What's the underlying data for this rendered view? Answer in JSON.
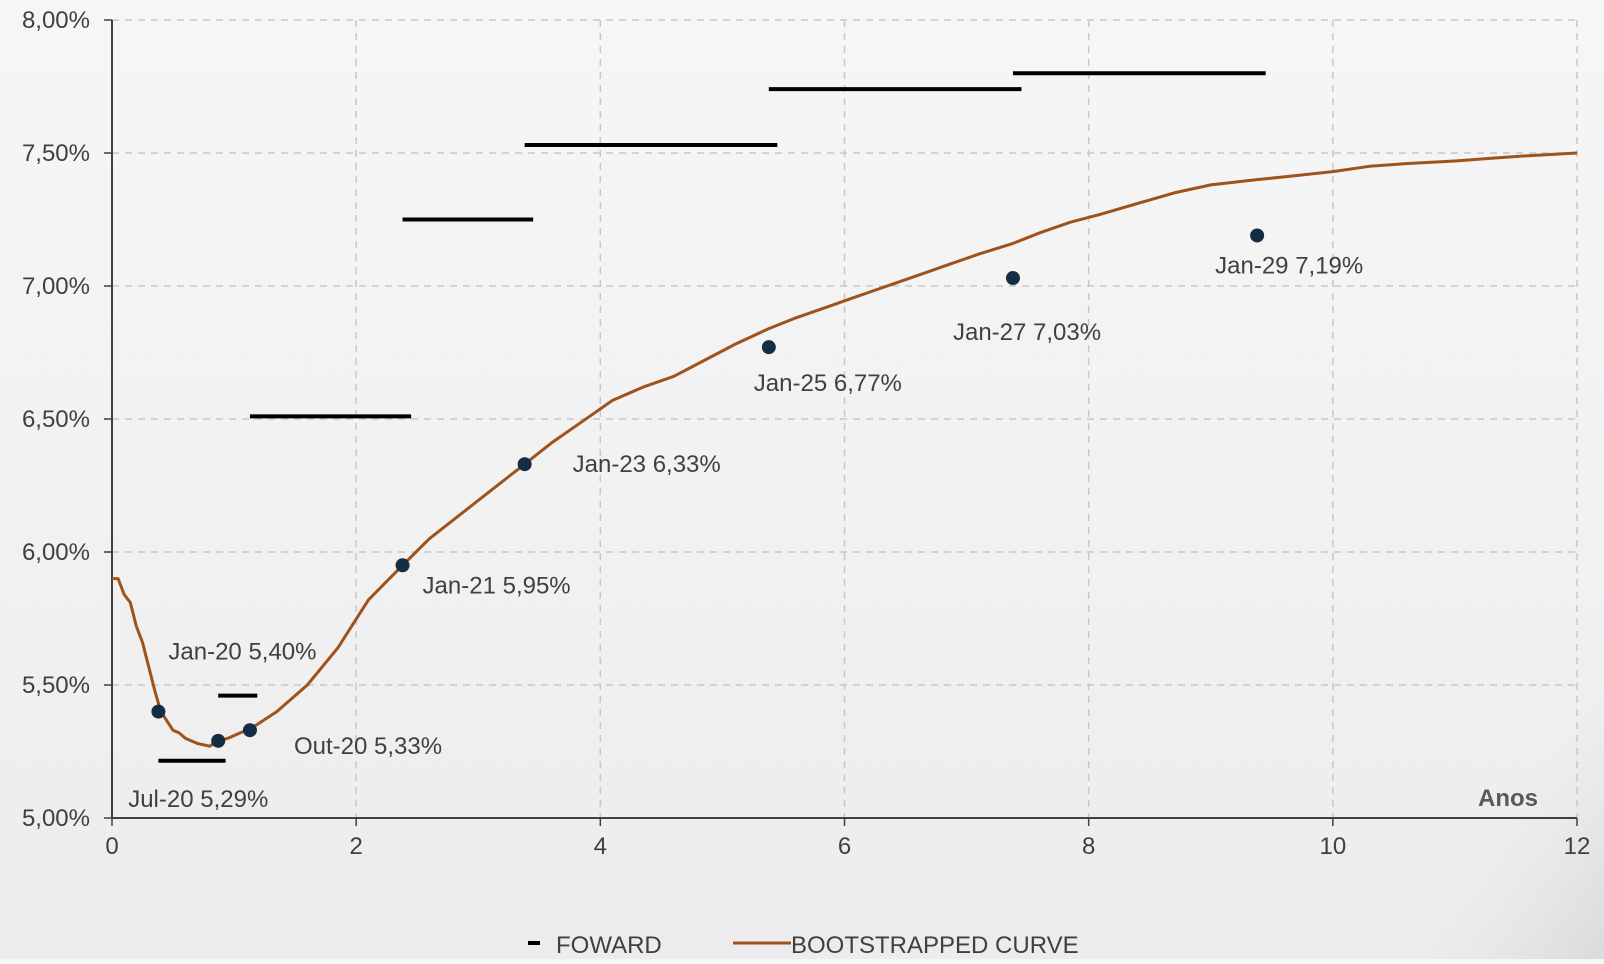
{
  "chart_data": {
    "type": "line",
    "title": "",
    "xlabel": "Anos",
    "ylabel": "",
    "xlim": [
      0,
      12
    ],
    "ylim": [
      5.0,
      8.0
    ],
    "x_ticks": [
      0,
      2,
      4,
      6,
      8,
      10,
      12
    ],
    "x_tick_labels": [
      "0",
      "2",
      "4",
      "6",
      "8",
      "10",
      "12"
    ],
    "y_ticks": [
      5.0,
      5.5,
      6.0,
      6.5,
      7.0,
      7.5,
      8.0
    ],
    "y_tick_labels": [
      "5,00%",
      "5,50%",
      "6,00%",
      "6,50%",
      "7,00%",
      "7,50%",
      "8,00%"
    ],
    "grid": "dashed",
    "legend_position": "bottom-center",
    "colors": {
      "curve": "#a0521b",
      "forward": "#000000",
      "points": "#152c45",
      "grid": "#c8c8c8",
      "axis": "#404040",
      "text": "#404040"
    },
    "series": [
      {
        "name": "FOWARD",
        "style": "segments",
        "segments": [
          {
            "x0": 0.38,
            "x1": 0.93,
            "y": 5.215
          },
          {
            "x0": 0.87,
            "x1": 1.19,
            "y": 5.46
          },
          {
            "x0": 1.13,
            "x1": 2.45,
            "y": 6.51
          },
          {
            "x0": 2.38,
            "x1": 3.45,
            "y": 7.25
          },
          {
            "x0": 3.38,
            "x1": 5.45,
            "y": 7.53
          },
          {
            "x0": 5.38,
            "x1": 7.45,
            "y": 7.74
          },
          {
            "x0": 7.38,
            "x1": 9.45,
            "y": 7.8
          }
        ]
      },
      {
        "name": "BOOTSTRAPPED CURVE",
        "style": "line",
        "x": [
          0.0,
          0.05,
          0.1,
          0.15,
          0.2,
          0.25,
          0.3,
          0.35,
          0.4,
          0.5,
          0.55,
          0.6,
          0.7,
          0.8,
          0.87,
          0.95,
          1.05,
          1.15,
          1.35,
          1.6,
          1.85,
          2.1,
          2.38,
          2.6,
          2.85,
          3.1,
          3.38,
          3.6,
          3.85,
          4.1,
          4.35,
          4.6,
          4.85,
          5.1,
          5.38,
          5.6,
          5.85,
          6.1,
          6.35,
          6.6,
          6.85,
          7.1,
          7.38,
          7.6,
          7.85,
          8.1,
          8.4,
          8.7,
          9.0,
          9.38,
          9.6,
          10.0,
          10.3,
          10.6,
          11.0,
          11.3,
          11.6,
          12.0
        ],
        "y": [
          5.9,
          5.9,
          5.84,
          5.81,
          5.72,
          5.66,
          5.57,
          5.48,
          5.4,
          5.33,
          5.32,
          5.3,
          5.28,
          5.27,
          5.29,
          5.3,
          5.32,
          5.34,
          5.4,
          5.5,
          5.64,
          5.82,
          5.95,
          6.05,
          6.14,
          6.23,
          6.33,
          6.41,
          6.49,
          6.57,
          6.62,
          6.66,
          6.72,
          6.78,
          6.84,
          6.88,
          6.92,
          6.96,
          7.0,
          7.04,
          7.08,
          7.12,
          7.16,
          7.2,
          7.24,
          7.27,
          7.31,
          7.35,
          7.38,
          7.4,
          7.41,
          7.43,
          7.45,
          7.46,
          7.47,
          7.48,
          7.49,
          7.5
        ]
      },
      {
        "name": "Points",
        "style": "markers",
        "points": [
          {
            "x": 0.38,
            "y": 5.4,
            "label": "Jan-20 5,40%",
            "label_side": "above-right"
          },
          {
            "x": 0.87,
            "y": 5.29,
            "label": "Jul-20 5,29%",
            "label_side": "below"
          },
          {
            "x": 1.13,
            "y": 5.33,
            "label": "Out-20 5,33%",
            "label_side": "below-right"
          },
          {
            "x": 2.38,
            "y": 5.95,
            "label": "Jan-21 5,95%",
            "label_side": "below-right"
          },
          {
            "x": 3.38,
            "y": 6.33,
            "label": "Jan-23 6,33%",
            "label_side": "right"
          },
          {
            "x": 5.38,
            "y": 6.77,
            "label": "Jan-25 6,77%",
            "label_side": "below-right"
          },
          {
            "x": 7.38,
            "y": 7.03,
            "label": "Jan-27 7,03%",
            "label_side": "below-left"
          },
          {
            "x": 9.38,
            "y": 7.19,
            "label": "Jan-29 7,19%",
            "label_side": "below"
          }
        ]
      }
    ],
    "legend": [
      {
        "label": "FOWARD",
        "marker": "dash"
      },
      {
        "label": "BOOTSTRAPPED CURVE",
        "marker": "line"
      }
    ]
  }
}
